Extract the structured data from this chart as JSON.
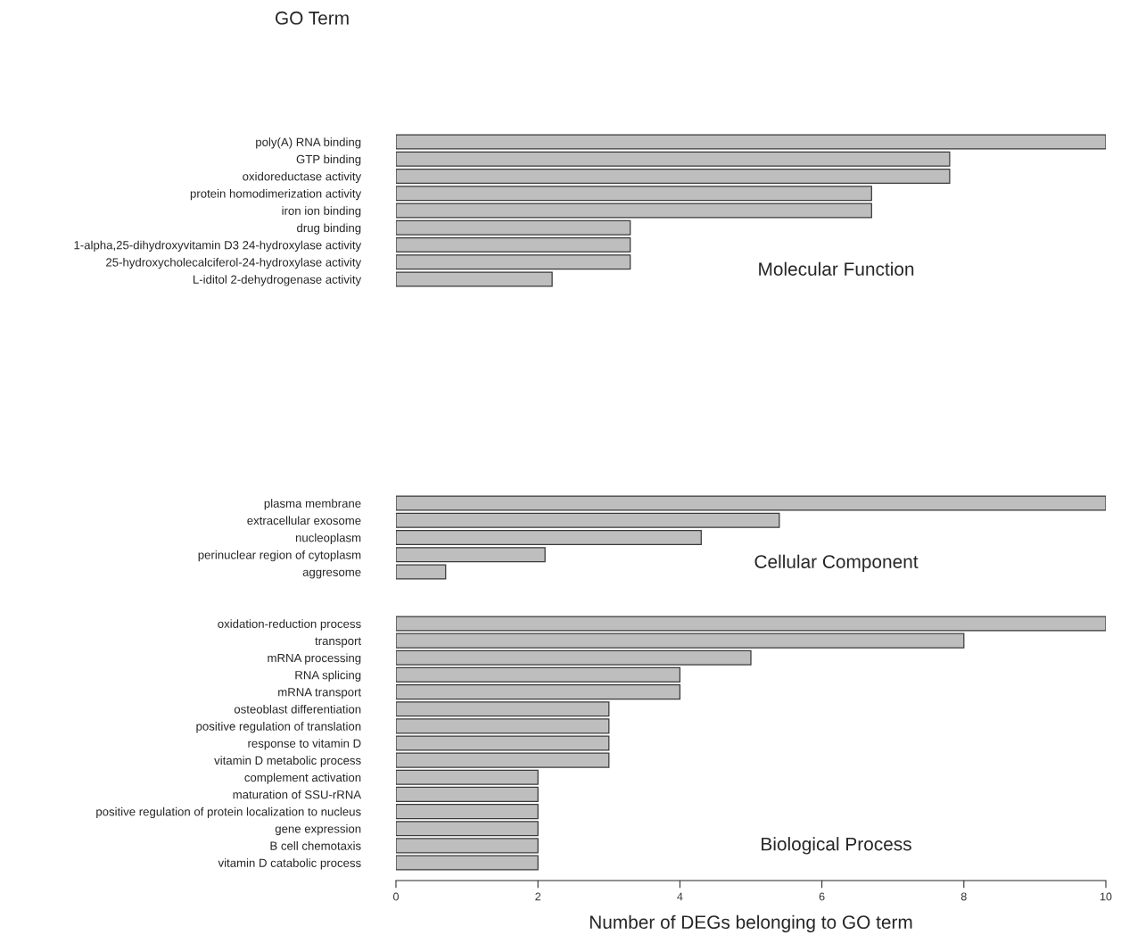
{
  "chart_data": [
    {
      "type": "bar",
      "orientation": "horizontal",
      "title": "GO Term",
      "categories": [
        "poly(A) RNA binding",
        "GTP binding",
        "oxidoreductase activity",
        "protein homodimerization activity",
        "iron ion binding",
        "drug binding",
        "1-alpha,25-dihydroxyvitamin D3 24-hydroxylase activity",
        "25-hydroxycholecalciferol-24-hydroxylase activity",
        "L-iditol 2-dehydrogenase activity"
      ],
      "values": [
        10,
        7.8,
        7.8,
        6.7,
        6.7,
        3.3,
        3.3,
        3.3,
        2.2
      ],
      "color": "#bebebe",
      "xlim": [
        0,
        10
      ],
      "tick_labels": "y",
      "annotations": [
        "Molecular Function"
      ]
    },
    {
      "type": "bar",
      "orientation": "horizontal",
      "categories": [
        "plasma membrane",
        "extracellular exosome",
        "nucleoplasm",
        "perinuclear region of cytoplasm",
        "aggresome"
      ],
      "values": [
        10,
        5.4,
        4.3,
        2.1,
        0.7
      ],
      "color": "#bebebe",
      "xlim": [
        0,
        10
      ],
      "tick_labels": "y",
      "annotations": [
        "Cellular Component"
      ]
    },
    {
      "type": "bar",
      "orientation": "horizontal",
      "xlabel": "Number of DEGs belonging to GO term",
      "categories": [
        "oxidation-reduction process",
        "transport",
        "mRNA processing",
        "RNA splicing",
        "mRNA transport",
        "osteoblast differentiation",
        "positive regulation of translation",
        "response to vitamin D",
        "vitamin D metabolic process",
        "complement activation",
        "maturation of SSU-rRNA",
        "positive regulation of protein localization to nucleus",
        "gene expression",
        "B cell chemotaxis",
        "vitamin D catabolic process"
      ],
      "values": [
        10,
        8,
        5,
        4,
        4,
        3,
        3,
        3,
        3,
        2,
        2,
        2,
        2,
        2,
        2
      ],
      "color": "#bebebe",
      "xlim": [
        0,
        10
      ],
      "xticks": [
        0,
        2,
        4,
        6,
        8,
        10
      ],
      "annotations": [
        "Biological Process"
      ]
    }
  ]
}
